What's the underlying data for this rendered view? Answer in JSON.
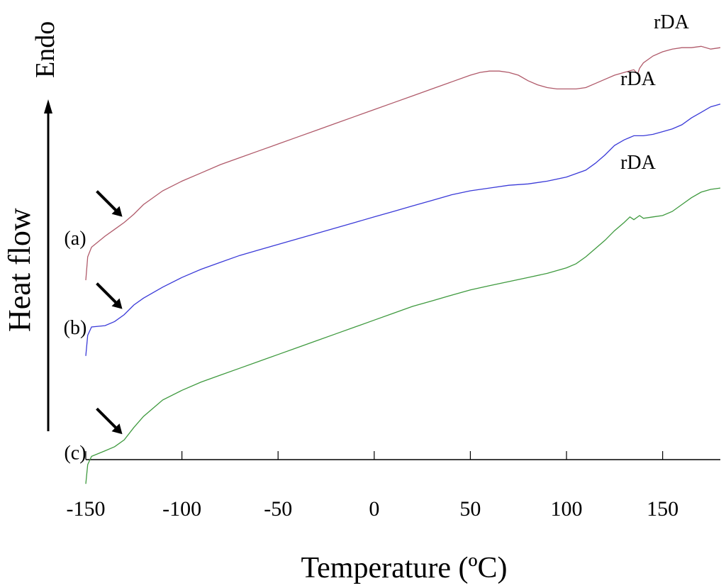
{
  "chart_data": {
    "type": "line",
    "title": "",
    "xlabel": "Temperature (ºC)",
    "ylabel": "Heat flow",
    "ylabel_direction": "Endo",
    "xlim": [
      -150,
      180
    ],
    "xticks": [
      -150,
      -100,
      -50,
      0,
      50,
      100,
      150
    ],
    "yticks_shown": false,
    "grid": false,
    "legend": "none",
    "series": [
      {
        "name": "(a)",
        "color": "#b05a6a",
        "peak_label": "rDA",
        "points": [
          [
            -150,
            1.8
          ],
          [
            -149,
            3.5
          ],
          [
            -147,
            4.2
          ],
          [
            -140,
            5.0
          ],
          [
            -135,
            5.5
          ],
          [
            -130,
            6.0
          ],
          [
            -125,
            6.6
          ],
          [
            -120,
            7.3
          ],
          [
            -110,
            8.3
          ],
          [
            -100,
            9.0
          ],
          [
            -90,
            9.6
          ],
          [
            -80,
            10.2
          ],
          [
            -70,
            10.7
          ],
          [
            -60,
            11.2
          ],
          [
            -50,
            11.7
          ],
          [
            -40,
            12.2
          ],
          [
            -30,
            12.7
          ],
          [
            -20,
            13.2
          ],
          [
            -10,
            13.7
          ],
          [
            0,
            14.2
          ],
          [
            10,
            14.7
          ],
          [
            20,
            15.2
          ],
          [
            30,
            15.7
          ],
          [
            40,
            16.2
          ],
          [
            50,
            16.7
          ],
          [
            55,
            16.9
          ],
          [
            60,
            17.0
          ],
          [
            65,
            17.0
          ],
          [
            70,
            16.9
          ],
          [
            75,
            16.7
          ],
          [
            80,
            16.3
          ],
          [
            85,
            16.0
          ],
          [
            90,
            15.8
          ],
          [
            95,
            15.7
          ],
          [
            100,
            15.7
          ],
          [
            105,
            15.7
          ],
          [
            110,
            15.8
          ],
          [
            115,
            16.1
          ],
          [
            120,
            16.4
          ],
          [
            125,
            16.7
          ],
          [
            130,
            16.9
          ],
          [
            135,
            17.1
          ],
          [
            137,
            16.8
          ],
          [
            138,
            17.2
          ],
          [
            140,
            17.6
          ],
          [
            145,
            18.1
          ],
          [
            150,
            18.4
          ],
          [
            155,
            18.6
          ],
          [
            160,
            18.7
          ],
          [
            165,
            18.7
          ],
          [
            170,
            18.8
          ],
          [
            175,
            18.6
          ],
          [
            180,
            18.7
          ]
        ]
      },
      {
        "name": "(b)",
        "color": "#3a3ad8",
        "peak_label": "rDA",
        "points": [
          [
            -150,
            -3.7
          ],
          [
            -149,
            -2.2
          ],
          [
            -147,
            -1.6
          ],
          [
            -140,
            -1.5
          ],
          [
            -135,
            -1.2
          ],
          [
            -130,
            -0.7
          ],
          [
            -125,
            0.0
          ],
          [
            -120,
            0.5
          ],
          [
            -110,
            1.3
          ],
          [
            -100,
            2.0
          ],
          [
            -90,
            2.6
          ],
          [
            -80,
            3.1
          ],
          [
            -70,
            3.6
          ],
          [
            -60,
            4.0
          ],
          [
            -50,
            4.4
          ],
          [
            -40,
            4.8
          ],
          [
            -30,
            5.2
          ],
          [
            -20,
            5.6
          ],
          [
            -10,
            6.0
          ],
          [
            0,
            6.4
          ],
          [
            10,
            6.8
          ],
          [
            20,
            7.2
          ],
          [
            30,
            7.6
          ],
          [
            40,
            8.0
          ],
          [
            50,
            8.3
          ],
          [
            60,
            8.5
          ],
          [
            70,
            8.7
          ],
          [
            80,
            8.8
          ],
          [
            90,
            9.0
          ],
          [
            100,
            9.3
          ],
          [
            110,
            9.8
          ],
          [
            115,
            10.3
          ],
          [
            120,
            10.9
          ],
          [
            125,
            11.6
          ],
          [
            130,
            12.0
          ],
          [
            135,
            12.3
          ],
          [
            140,
            12.3
          ],
          [
            145,
            12.4
          ],
          [
            150,
            12.6
          ],
          [
            155,
            12.8
          ],
          [
            160,
            13.1
          ],
          [
            165,
            13.6
          ],
          [
            170,
            14.0
          ],
          [
            175,
            14.4
          ],
          [
            180,
            14.6
          ]
        ]
      },
      {
        "name": "(c)",
        "color": "#3f9a3f",
        "peak_label": "rDA",
        "points": [
          [
            -150,
            -13.0
          ],
          [
            -149,
            -11.6
          ],
          [
            -147,
            -11.0
          ],
          [
            -140,
            -10.6
          ],
          [
            -135,
            -10.3
          ],
          [
            -130,
            -9.8
          ],
          [
            -125,
            -8.9
          ],
          [
            -120,
            -8.1
          ],
          [
            -110,
            -6.9
          ],
          [
            -100,
            -6.2
          ],
          [
            -90,
            -5.6
          ],
          [
            -80,
            -5.1
          ],
          [
            -70,
            -4.6
          ],
          [
            -60,
            -4.1
          ],
          [
            -50,
            -3.6
          ],
          [
            -40,
            -3.1
          ],
          [
            -30,
            -2.6
          ],
          [
            -20,
            -2.1
          ],
          [
            -10,
            -1.6
          ],
          [
            0,
            -1.1
          ],
          [
            10,
            -0.6
          ],
          [
            20,
            -0.1
          ],
          [
            30,
            0.3
          ],
          [
            40,
            0.7
          ],
          [
            50,
            1.1
          ],
          [
            60,
            1.4
          ],
          [
            70,
            1.7
          ],
          [
            80,
            2.0
          ],
          [
            90,
            2.3
          ],
          [
            100,
            2.7
          ],
          [
            105,
            3.0
          ],
          [
            110,
            3.5
          ],
          [
            115,
            4.1
          ],
          [
            120,
            4.7
          ],
          [
            125,
            5.4
          ],
          [
            130,
            6.0
          ],
          [
            133,
            6.4
          ],
          [
            135,
            6.2
          ],
          [
            138,
            6.5
          ],
          [
            140,
            6.3
          ],
          [
            145,
            6.4
          ],
          [
            150,
            6.5
          ],
          [
            155,
            6.8
          ],
          [
            160,
            7.3
          ],
          [
            165,
            7.8
          ],
          [
            170,
            8.2
          ],
          [
            175,
            8.4
          ],
          [
            180,
            8.5
          ]
        ]
      }
    ]
  }
}
